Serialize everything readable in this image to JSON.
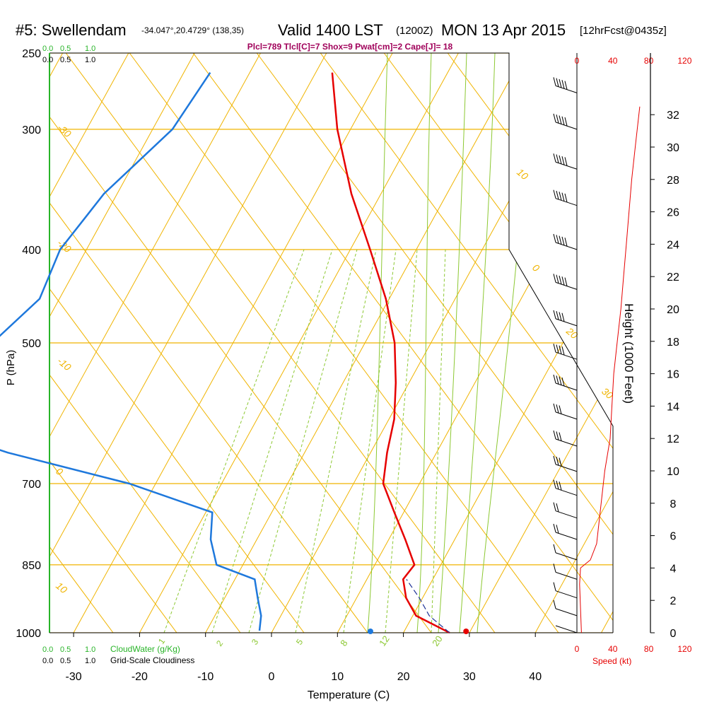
{
  "header": {
    "station": "#5: Swellendam",
    "coords": "-34.047°,20.4729° (138,35)",
    "valid": "Valid 1400 LST",
    "zulu": "(1200Z)",
    "date": "MON 13 Apr 2015",
    "fcst": "[12hrFcst@0435z]",
    "indices": "Plcl=789 Tlcl[C]=7 Shox=9 Pwat[cm]=2 Cape[J]= 18"
  },
  "labels": {
    "ylabel": "P (hPa)",
    "xlabel": "Temperature (C)",
    "height_label": "Height (1000 Feet)",
    "speed_label": "Speed (kt)",
    "cloudwater_label": "CloudWater (g/Kg)",
    "cloudiness_label": "Grid-Scale Cloudiness"
  },
  "colors": {
    "isobar": "#f0b400",
    "dry_adiabat": "#f0b400",
    "moist_adiabat": "#8cc832",
    "mixing_ratio": "#8cc832",
    "temperature": "#e60000",
    "dewpoint": "#1e78dc",
    "speed": "#e60000",
    "cloud_green": "#28b428",
    "indices": "#a0005a"
  },
  "chart_data": {
    "type": "skew-t",
    "pressure_levels": [
      250,
      300,
      400,
      500,
      700,
      850,
      1000
    ],
    "x_ticks": [
      -30,
      -20,
      -10,
      0,
      10,
      20,
      30,
      40
    ],
    "xlim": [
      -35,
      45
    ],
    "plim": [
      250,
      1000
    ],
    "cloud_scale_top": [
      "0.0",
      "0.5",
      "1.0"
    ],
    "cloud_scale_labels": [
      "0.0",
      "0.5",
      "1.0"
    ],
    "height_ticks_kft": [
      0,
      2,
      4,
      6,
      8,
      10,
      12,
      14,
      16,
      18,
      20,
      22,
      24,
      26,
      28,
      30,
      32
    ],
    "speed_ticks_kt": [
      0,
      40,
      80,
      120
    ],
    "dry_adiabat_labels": [
      "-30",
      "-20",
      "-10",
      "0",
      "10",
      "20",
      "30",
      "10",
      "0"
    ],
    "moist_adiabat_labels": [
      "8",
      "12",
      "20"
    ],
    "mixing_ratio_labels": [
      "1",
      "2",
      "3",
      "5"
    ],
    "temperature": [
      {
        "p": 262,
        "t": -37.5
      },
      {
        "p": 300,
        "t": -32
      },
      {
        "p": 350,
        "t": -24.5
      },
      {
        "p": 400,
        "t": -17
      },
      {
        "p": 450,
        "t": -10.5
      },
      {
        "p": 500,
        "t": -5.5
      },
      {
        "p": 550,
        "t": -2
      },
      {
        "p": 600,
        "t": 0.8
      },
      {
        "p": 650,
        "t": 2.5
      },
      {
        "p": 700,
        "t": 4.5
      },
      {
        "p": 750,
        "t": 8.6
      },
      {
        "p": 800,
        "t": 12.5
      },
      {
        "p": 850,
        "t": 16
      },
      {
        "p": 880,
        "t": 15.5
      },
      {
        "p": 920,
        "t": 17.5
      },
      {
        "p": 960,
        "t": 20.5
      },
      {
        "p": 1000,
        "t": 27
      }
    ],
    "dewpoint": [
      {
        "p": 262,
        "td": -56
      },
      {
        "p": 300,
        "td": -57
      },
      {
        "p": 350,
        "td": -62
      },
      {
        "p": 400,
        "td": -64
      },
      {
        "p": 450,
        "td": -63
      },
      {
        "p": 500,
        "td": -66.5
      },
      {
        "p": 550,
        "td": -73
      },
      {
        "p": 600,
        "td": -73
      },
      {
        "p": 650,
        "td": -55
      },
      {
        "p": 700,
        "td": -34
      },
      {
        "p": 750,
        "td": -19
      },
      {
        "p": 800,
        "td": -17
      },
      {
        "p": 850,
        "td": -14
      },
      {
        "p": 880,
        "td": -7
      },
      {
        "p": 920,
        "td": -5
      },
      {
        "p": 960,
        "td": -3
      },
      {
        "p": 995,
        "td": -2
      }
    ],
    "parcel": [
      {
        "p": 1000,
        "t": 27
      },
      {
        "p": 960,
        "t": 22.5
      },
      {
        "p": 920,
        "t": 19.5
      },
      {
        "p": 880,
        "t": 16
      }
    ],
    "surface_temperature": {
      "p": 1000,
      "t": 29.5
    },
    "surface_dewpoint": {
      "p": 1000,
      "t": 15
    },
    "wind_speed_profile": [
      {
        "kft": 0.0,
        "kt": 5
      },
      {
        "kft": 3.0,
        "kt": 3
      },
      {
        "kft": 4.0,
        "kt": 4
      },
      {
        "kft": 4.5,
        "kt": 15
      },
      {
        "kft": 5.5,
        "kt": 22
      },
      {
        "kft": 7.5,
        "kt": 26
      },
      {
        "kft": 10.0,
        "kt": 31
      },
      {
        "kft": 12.0,
        "kt": 37
      },
      {
        "kft": 14.0,
        "kt": 39
      },
      {
        "kft": 16.0,
        "kt": 41
      },
      {
        "kft": 18.0,
        "kt": 45
      },
      {
        "kft": 20.0,
        "kt": 49
      },
      {
        "kft": 22.0,
        "kt": 52
      },
      {
        "kft": 24.0,
        "kt": 55
      },
      {
        "kft": 26.0,
        "kt": 58
      },
      {
        "kft": 28.0,
        "kt": 61
      },
      {
        "kft": 30.0,
        "kt": 65
      },
      {
        "kft": 32.5,
        "kt": 70
      }
    ],
    "wind_barbs": [
      {
        "p": 275,
        "speed": 60
      },
      {
        "p": 300,
        "speed": 60
      },
      {
        "p": 330,
        "speed": 55
      },
      {
        "p": 360,
        "speed": 55
      },
      {
        "p": 400,
        "speed": 50
      },
      {
        "p": 440,
        "speed": 50
      },
      {
        "p": 480,
        "speed": 45
      },
      {
        "p": 520,
        "speed": 40
      },
      {
        "p": 560,
        "speed": 40
      },
      {
        "p": 600,
        "speed": 35
      },
      {
        "p": 640,
        "speed": 35
      },
      {
        "p": 680,
        "speed": 30
      },
      {
        "p": 720,
        "speed": 30
      },
      {
        "p": 760,
        "speed": 25
      },
      {
        "p": 800,
        "speed": 25
      },
      {
        "p": 840,
        "speed": 15
      },
      {
        "p": 880,
        "speed": 10
      },
      {
        "p": 920,
        "speed": 10
      },
      {
        "p": 960,
        "speed": 10
      },
      {
        "p": 1000,
        "speed": 5
      }
    ]
  }
}
